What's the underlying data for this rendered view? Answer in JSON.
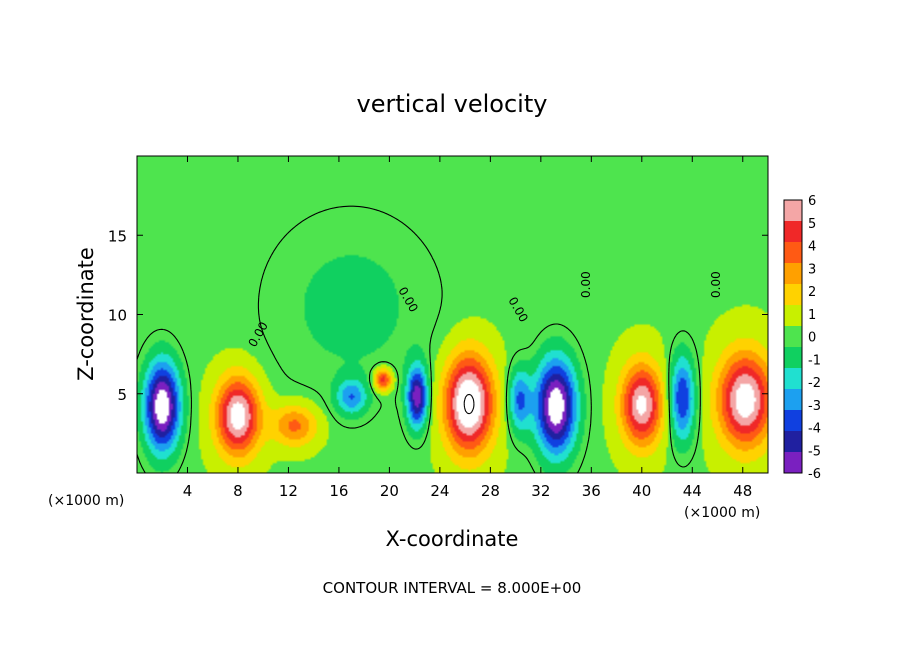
{
  "chart_data": {
    "type": "heatmap",
    "title": "vertical velocity",
    "xlabel": "X-coordinate",
    "ylabel": "Z-coordinate",
    "x_unit_label": "(×1000 m)",
    "x_unit_label_right": "(×1000 m)",
    "xlim": [
      0,
      50
    ],
    "ylim": [
      0,
      20
    ],
    "xticks": [
      4,
      8,
      12,
      16,
      20,
      24,
      28,
      32,
      36,
      40,
      44,
      48
    ],
    "yticks": [
      5,
      10,
      15
    ],
    "colorbar": {
      "levels": [
        6,
        5,
        4,
        3,
        2,
        1,
        0,
        -1,
        -2,
        -3,
        -4,
        -5,
        -6
      ],
      "colors": [
        "#f4a6a6",
        "#f02828",
        "#ff5a14",
        "#ffa000",
        "#ffd200",
        "#c8f000",
        "#4ee44e",
        "#10d060",
        "#20e0d0",
        "#1ca0f0",
        "#1040e0",
        "#2020a0",
        "#7a20c0"
      ]
    },
    "contour_label": "0.00",
    "footer": "CONTOUR INTERVAL = 8.000E+00",
    "field": {
      "background_value": 0.4,
      "updrafts": [
        {
          "x": 8.0,
          "z": 3.6,
          "peak": 7,
          "wx": 1.7,
          "wz": 2.4
        },
        {
          "x": 26.3,
          "z": 4.4,
          "peak": 8,
          "wx": 1.9,
          "wz": 3.0
        },
        {
          "x": 48.2,
          "z": 4.6,
          "peak": 7,
          "wx": 2.1,
          "wz": 2.9
        },
        {
          "x": 40.0,
          "z": 4.3,
          "peak": 6.5,
          "wx": 1.6,
          "wz": 2.5
        },
        {
          "x": 19.5,
          "z": 5.9,
          "peak": 5,
          "wx": 0.7,
          "wz": 0.7
        },
        {
          "x": 12.5,
          "z": 3.0,
          "peak": 3.5,
          "wx": 1.8,
          "wz": 1.3
        }
      ],
      "downdrafts": [
        {
          "x": 2.0,
          "z": 4.2,
          "peak": -8,
          "wx": 1.4,
          "wz": 2.8
        },
        {
          "x": 33.2,
          "z": 4.2,
          "peak": -8,
          "wx": 1.6,
          "wz": 3.0
        },
        {
          "x": 22.2,
          "z": 4.8,
          "peak": -6.5,
          "wx": 0.8,
          "wz": 1.9
        },
        {
          "x": 17.0,
          "z": 4.8,
          "peak": -3.5,
          "wx": 1.2,
          "wz": 1.1
        },
        {
          "x": 43.2,
          "z": 4.7,
          "peak": -5,
          "wx": 1.0,
          "wz": 2.7
        },
        {
          "x": 30.3,
          "z": 4.6,
          "peak": -4,
          "wx": 0.9,
          "wz": 2.0
        }
      ],
      "weak_negative_region": {
        "x": 17.0,
        "z": 10.5,
        "peak": -1.2,
        "wx": 7.0,
        "wz": 6.0
      }
    }
  }
}
